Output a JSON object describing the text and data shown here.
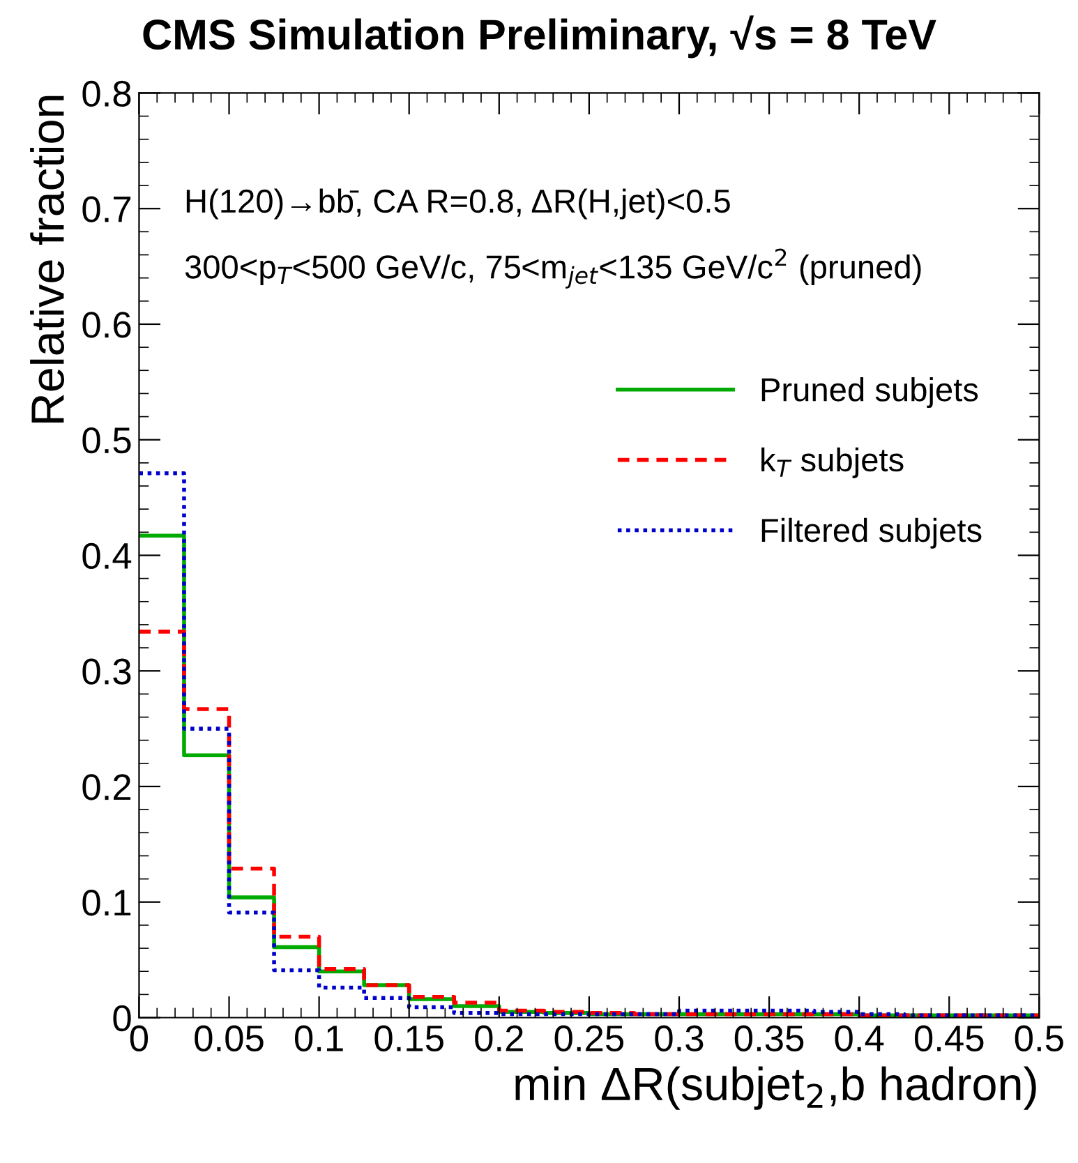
{
  "chart_data": {
    "type": "histogram",
    "title": "CMS Simulation Preliminary, √s = 8 TeV",
    "xlabel": "min ΔR(subjet$_{2}$,b hadron)",
    "ylabel": "Relative fraction",
    "annotations": [
      "H(120)→bb̄, CA R=0.8, ΔR(H,jet)<0.5",
      "300<p$_{T}$<500 GeV/c, 75<m$_{jet}$<135 GeV/c$^{2}$ (pruned)"
    ],
    "bins": [
      0,
      0.025,
      0.05,
      0.075,
      0.1,
      0.125,
      0.15,
      0.175,
      0.2,
      0.225,
      0.25,
      0.275,
      0.3,
      0.325,
      0.35,
      0.375,
      0.4,
      0.425,
      0.45,
      0.475,
      0.5
    ],
    "series": [
      {
        "name": "Pruned subjets",
        "color": "#00aa00",
        "line_style": "solid",
        "values": [
          0.417,
          0.227,
          0.104,
          0.061,
          0.04,
          0.028,
          0.016,
          0.01,
          0.005,
          0.004,
          0.003,
          0.003,
          0.003,
          0.003,
          0.003,
          0.003,
          0.002,
          0.002,
          0.002,
          0.002
        ]
      },
      {
        "name": "k$_{T}$ subjets",
        "color": "#ff0000",
        "line_style": "dashed",
        "values": [
          0.334,
          0.267,
          0.129,
          0.07,
          0.042,
          0.028,
          0.018,
          0.013,
          0.006,
          0.005,
          0.004,
          0.003,
          0.003,
          0.003,
          0.003,
          0.003,
          0.002,
          0.002,
          0.002,
          0.002
        ]
      },
      {
        "name": "Filtered subjets",
        "color": "#0000cc",
        "line_style": "dotted",
        "values": [
          0.471,
          0.25,
          0.091,
          0.041,
          0.026,
          0.017,
          0.009,
          0.004,
          0.003,
          0.003,
          0.003,
          0.003,
          0.006,
          0.006,
          0.006,
          0.005,
          0.003,
          0.002,
          0.002,
          0.002
        ]
      }
    ],
    "xlim": [
      0,
      0.5
    ],
    "xticks": [
      0,
      0.05,
      0.1,
      0.15,
      0.2,
      0.25,
      0.3,
      0.35,
      0.4,
      0.45,
      0.5
    ],
    "ylim": [
      0,
      0.8
    ],
    "yticks": [
      0,
      0.1,
      0.2,
      0.3,
      0.4,
      0.5,
      0.6,
      0.7,
      0.8
    ],
    "grid": false,
    "legend": "center right"
  }
}
